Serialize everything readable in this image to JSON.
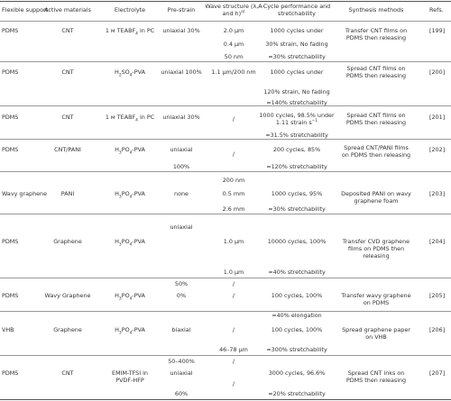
{
  "table": {
    "headers": {
      "support": "Flexible support",
      "active": "Active materials",
      "electrolyte": "Electrolyte",
      "prestrain": "Pre-strain",
      "wave": "Wave structure (λ,A",
      "wave2": "and h)",
      "wave_sup": "a)",
      "cycle": "Cycle performance and",
      "cycle2": "stretchability",
      "synth": "Synthesis methods",
      "refs": "Refs."
    },
    "rows": {
      "r199": {
        "support": "PDMS",
        "active": "CNT",
        "elec": "1 м TEABF",
        "elec_sub": "4",
        "elec_tail": " in PC",
        "prestrain": "uniaxial 30%",
        "wave1": "2.0 µm",
        "wave2": "0.4 µm",
        "wave3": "50 nm",
        "cycle1": "1000 cycles under",
        "cycle2": "30% strain, No fading",
        "cycle3": "≈30% stretchability",
        "synth1": "Transfer CNT films on",
        "synth2": "PDMS then releasing",
        "ref": "[199]"
      },
      "r200": {
        "support": "PDMS",
        "active": "CNT",
        "elec_pre": "H",
        "elec_sub1": "2",
        "elec_mid": "SO",
        "elec_sub2": "4",
        "elec_tail": "-PVA",
        "prestrain": "uniaxial 100%",
        "wave1": "1.1 µm/200 nm",
        "cycle1": "1000 cycles under",
        "cycle2": "120% strain, No fading",
        "cycle3": "≈140% stretchability",
        "synth1": "Spread CNT films on",
        "synth2": "PDMS then releasing",
        "ref": "[200]"
      },
      "r201": {
        "support": "PDMS",
        "active": "CNT",
        "elec": "1 м TEABF",
        "elec_sub": "4",
        "elec_tail": " in PC",
        "prestrain": "uniaxial 30%",
        "wave1": "/",
        "cycle1": "1000 cycles, 98.5% under",
        "cycle2": "1.11 strain s",
        "cycle2_sup": "−1",
        "cycle3": "≈31.5% stretchability",
        "synth1": "Spread CNT films on",
        "synth2": "PDMS then releasing",
        "ref": "[201]"
      },
      "r202": {
        "support": "PDMS",
        "active": "CNT/PANI",
        "elec_pre": "H",
        "elec_sub1": "3",
        "elec_mid": "PO",
        "elec_sub2": "4",
        "elec_tail": "-PVA",
        "prestrain1": "uniaxial",
        "prestrain2": "100%",
        "wave1": "/",
        "cycle1": "200 cycles, 85%",
        "cycle2": "≈120% stretchability",
        "synth1": "Spread CNT/PANI films",
        "synth2": "on PDMS then releasing",
        "ref": "[202]"
      },
      "r203": {
        "support": "Wavy graphene",
        "active": "PANI",
        "elec_pre": "H",
        "elec_sub1": "3",
        "elec_mid": "PO",
        "elec_sub2": "4",
        "elec_tail": "-PVA",
        "prestrain": "none",
        "wave1": "200 nm",
        "wave2": "0.5 mm",
        "wave3": "2.6 mm",
        "cycle1": "1000 cycles, 95%",
        "cycle2": "≈30% stretchability",
        "synth1": "Deposited PANI on wavy",
        "synth2": "graphene foam",
        "ref": "[203]"
      },
      "r204": {
        "support": "PDMS",
        "active": "Graphene",
        "elec_pre": "H",
        "elec_sub1": "3",
        "elec_mid": "PO",
        "elec_sub2": "4",
        "elec_tail": "-PVA",
        "prestrain1": "uniaxial",
        "prestrain2": "50%",
        "wave1": "1.0 µm",
        "wave2": "1.0 µm",
        "wave3": "/",
        "cycle1": "10000 cycles, 100%",
        "cycle2": "≈40% stretchability",
        "synth1": "Transfer CVD graphene",
        "synth2": "films on PDMS then",
        "synth3": "releasing",
        "ref": "[204]"
      },
      "r205": {
        "support": "PDMS",
        "active": "Wavy Graphene",
        "elec_pre": "H",
        "elec_sub1": "3",
        "elec_mid": "PO",
        "elec_sub2": "4",
        "elec_tail": "-PVA",
        "prestrain": "0%",
        "wave1": "/",
        "cycle1": "100 cycles, 100%",
        "cycle2": "≈40% elongation",
        "synth1": "Transfer wavy graphene",
        "synth2": "on PDMS",
        "ref": "[205]"
      },
      "r206": {
        "support": "VHB",
        "active": "Graphene",
        "elec_pre": "H",
        "elec_sub1": "3",
        "elec_mid": "PO",
        "elec_sub2": "4",
        "elec_tail": "-PVA",
        "prestrain1": "biaxial",
        "prestrain2": "50–400%",
        "wave1": "/",
        "wave2": "46–78 µm",
        "wave3": "/",
        "cycle1": "100 cycles, 100%",
        "cycle2": "≈300% stretchability",
        "synth1": "Spread graphene paper",
        "synth2": "on VHB",
        "ref": "[206]"
      },
      "r207": {
        "support": "PDMS",
        "active": "CNT",
        "elec1": "EMIM-TFSI in",
        "elec2": "PVDF-HFP",
        "prestrain1": "uniaxial",
        "prestrain2": "60%",
        "wave1": "/",
        "cycle1": "3000 cycles, 96.6%",
        "cycle2": "≈20% stretchability",
        "synth1": "Spread CNT inks on",
        "synth2": "PDMS then releasing",
        "ref": "[207]"
      }
    }
  }
}
